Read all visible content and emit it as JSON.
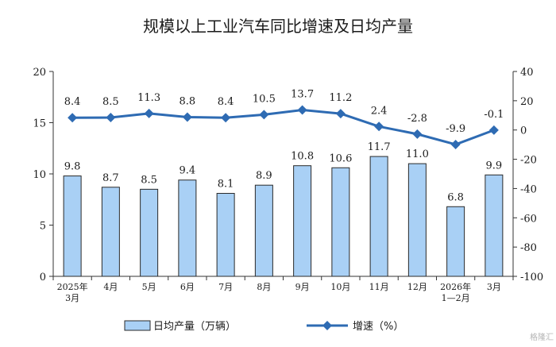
{
  "chart_data": {
    "type": "bar",
    "title": "规模以上工业汽车同比增速及日均产量",
    "categories": [
      [
        "2025年",
        "3月"
      ],
      [
        "4月"
      ],
      [
        "5月"
      ],
      [
        "6月"
      ],
      [
        "7月"
      ],
      [
        "8月"
      ],
      [
        "9月"
      ],
      [
        "10月"
      ],
      [
        "11月"
      ],
      [
        "12月"
      ],
      [
        "2026年",
        "1—2月"
      ],
      [
        "3月"
      ]
    ],
    "series": [
      {
        "name": "日均产量（万辆）",
        "type": "bar",
        "axis": "left",
        "color": "#a9d0f5",
        "values": [
          9.8,
          8.7,
          8.5,
          9.4,
          8.1,
          8.9,
          10.8,
          10.6,
          11.7,
          11.0,
          6.8,
          9.9
        ],
        "labels": [
          "9.8",
          "8.7",
          "8.5",
          "9.4",
          "8.1",
          "8.9",
          "10.8",
          "10.6",
          "11.7",
          "11.0",
          "6.8",
          "9.9"
        ]
      },
      {
        "name": "增速（%）",
        "type": "line",
        "axis": "right",
        "color": "#2e6bb3",
        "marker": "diamond",
        "values": [
          8.4,
          8.5,
          11.3,
          8.8,
          8.4,
          10.5,
          13.7,
          11.2,
          2.4,
          -2.8,
          -9.9,
          -0.1
        ],
        "labels": [
          "8.4",
          "8.5",
          "11.3",
          "8.8",
          "8.4",
          "10.5",
          "13.7",
          "11.2",
          "2.4",
          "-2.8",
          "-9.9",
          "-0.1"
        ]
      }
    ],
    "y_left": {
      "min": 0,
      "max": 20,
      "ticks": [
        "0",
        "5",
        "10",
        "15",
        "20"
      ]
    },
    "y_right": {
      "min": -100,
      "max": 40,
      "ticks": [
        "-100",
        "-80",
        "-60",
        "-40",
        "-20",
        "0",
        "20",
        "40"
      ]
    },
    "grid": false,
    "legend_position": "bottom"
  },
  "watermark": "格隆汇"
}
